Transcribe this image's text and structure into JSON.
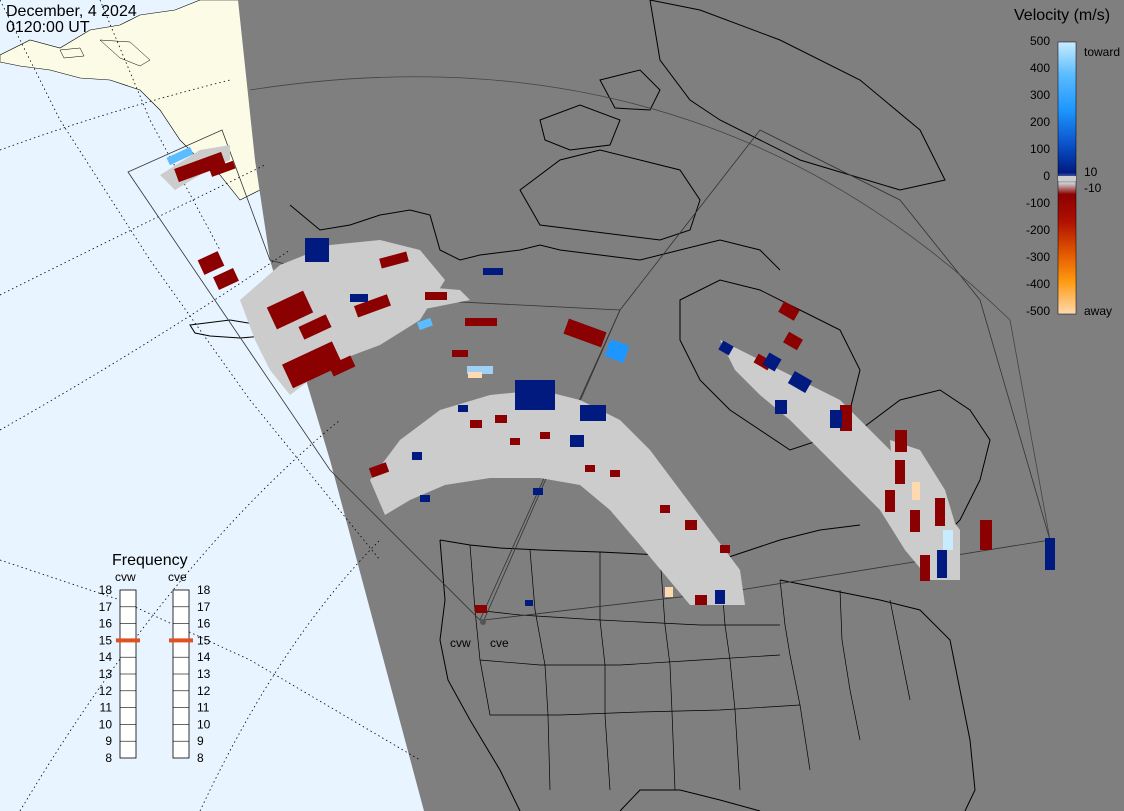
{
  "header": {
    "date": "December, 4 2024",
    "time": "0120:00 UT"
  },
  "colorbar": {
    "title": "Velocity (m/s)",
    "ticks": [
      "500",
      "400",
      "300",
      "200",
      "100",
      "0",
      "-100",
      "-200",
      "-300",
      "-400",
      "-500"
    ],
    "toward_label": "toward",
    "away_label": "away",
    "gs_pos_label": "10",
    "gs_neg_label": "-10",
    "colors": {
      "toward_light": "#c8ecff",
      "toward_mid": "#1e96ff",
      "toward_dark": "#001a80",
      "away_dark": "#8b0000",
      "away_mid": "#e35a00",
      "away_light": "#ffd9b0",
      "ground_scatter": "#cccccc"
    }
  },
  "frequency": {
    "title": "Frequency",
    "radars": [
      "cvw",
      "cve"
    ],
    "scale": [
      "18",
      "17",
      "16",
      "15",
      "14",
      "13",
      "12",
      "11",
      "10",
      "9",
      "8"
    ],
    "current_mhz": [
      15,
      15
    ],
    "marker_color": "#e05020"
  },
  "map": {
    "radar_labels": [
      "cvw",
      "cve"
    ],
    "land_color": "#7f7f7f",
    "ocean_color": "#e8f4ff",
    "night_shade": "#7f7f7f",
    "day_land_color": "#fcfbe6"
  }
}
